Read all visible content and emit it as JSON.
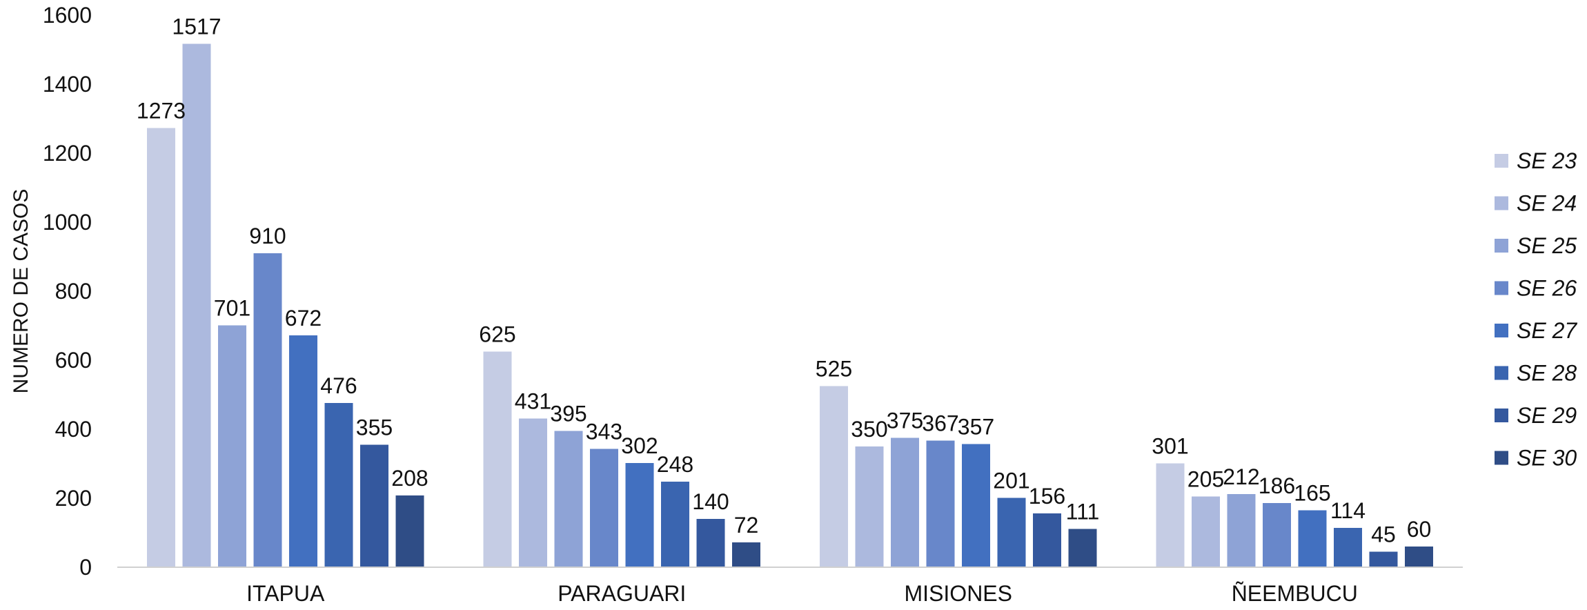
{
  "chart_data": {
    "type": "bar",
    "ylabel": "NUMERO DE CASOS",
    "ylim": [
      0,
      1600
    ],
    "yticks": [
      0,
      200,
      400,
      600,
      800,
      1000,
      1200,
      1400,
      1600
    ],
    "categories": [
      "ITAPUA",
      "PARAGUARI",
      "MISIONES",
      "ÑEEMBUCU"
    ],
    "grid": false,
    "legend_position": "right",
    "series": [
      {
        "name": "SE 23",
        "color": "#C5CCE4",
        "values": [
          1273,
          625,
          525,
          301
        ]
      },
      {
        "name": "SE 24",
        "color": "#ACB9DE",
        "values": [
          1517,
          431,
          350,
          205
        ]
      },
      {
        "name": "SE 25",
        "color": "#8EA3D6",
        "values": [
          701,
          395,
          375,
          212
        ]
      },
      {
        "name": "SE 26",
        "color": "#6887CA",
        "values": [
          910,
          343,
          367,
          186
        ]
      },
      {
        "name": "SE 27",
        "color": "#4270C0",
        "values": [
          672,
          302,
          357,
          165
        ]
      },
      {
        "name": "SE 28",
        "color": "#3A65B0",
        "values": [
          476,
          248,
          201,
          114
        ]
      },
      {
        "name": "SE 29",
        "color": "#34589E",
        "values": [
          355,
          140,
          156,
          45
        ]
      },
      {
        "name": "SE 30",
        "color": "#2F4D86",
        "values": [
          208,
          72,
          111,
          60
        ]
      }
    ]
  }
}
